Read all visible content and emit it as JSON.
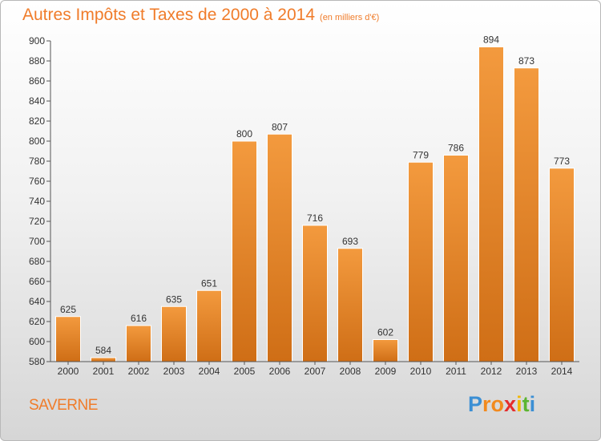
{
  "chart_data": {
    "type": "bar",
    "title": "Autres Impôts et Taxes de 2000 à 2014",
    "subtitle": "(en milliers d'€)",
    "categories": [
      "2000",
      "2001",
      "2002",
      "2003",
      "2004",
      "2005",
      "2006",
      "2007",
      "2008",
      "2009",
      "2010",
      "2011",
      "2012",
      "2013",
      "2014"
    ],
    "values": [
      625,
      584,
      616,
      635,
      651,
      800,
      807,
      716,
      693,
      602,
      779,
      786,
      894,
      873,
      773
    ],
    "ylim": [
      580,
      900
    ],
    "yticks": [
      580,
      600,
      620,
      640,
      660,
      680,
      700,
      720,
      740,
      760,
      780,
      800,
      820,
      840,
      860,
      880,
      900
    ],
    "grid": false,
    "xlabel": "",
    "ylabel": "",
    "bar_color": "#f39a3e",
    "bar_color_dark": "#cf6e16"
  },
  "footer": {
    "city": "SAVERNE",
    "logo_letters": [
      {
        "char": "P",
        "color": "#3b8fd4"
      },
      {
        "char": "r",
        "color": "#f28a1e"
      },
      {
        "char": "o",
        "color": "#f28a1e"
      },
      {
        "char": "x",
        "color": "#e52d2d"
      },
      {
        "char": "i",
        "color": "#f2b705"
      },
      {
        "char": "t",
        "color": "#5cb531"
      },
      {
        "char": "i",
        "color": "#3b8fd4"
      }
    ]
  },
  "colors": {
    "accent": "#f07c2a"
  }
}
